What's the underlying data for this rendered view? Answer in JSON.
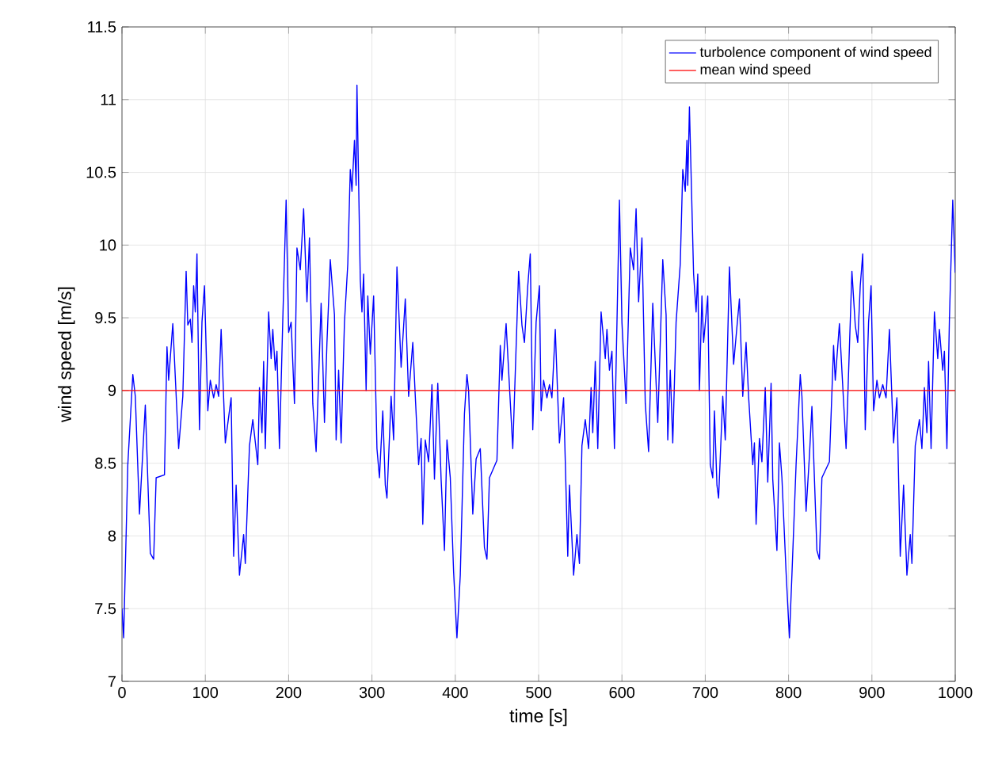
{
  "chart_data": {
    "type": "line",
    "xlabel": "time [s]",
    "ylabel": "wind speed [m/s]",
    "xlim": [
      0,
      1000
    ],
    "xticks": [
      0,
      100,
      200,
      300,
      400,
      500,
      600,
      700,
      800,
      900,
      1000
    ],
    "ylim": [
      7,
      11.5
    ],
    "yticks": [
      7,
      7.5,
      8,
      8.5,
      9,
      9.5,
      10,
      10.5,
      11,
      11.5
    ],
    "grid": true,
    "legend": "top right",
    "marker": "none",
    "line_style": "solid",
    "series": [
      {
        "name": "turbolence component of wind speed",
        "color": "#0000ff",
        "x": [
          0,
          2,
          7,
          13,
          16,
          21,
          28,
          34,
          38,
          41,
          51,
          54,
          56,
          61,
          68,
          73,
          77,
          79,
          82,
          84,
          86,
          88,
          90,
          93,
          96,
          99,
          103,
          106,
          110,
          113,
          116,
          119,
          124,
          131,
          134,
          137,
          141,
          146,
          148,
          153,
          157,
          163,
          165,
          168,
          170,
          172,
          176,
          179,
          181,
          184,
          186,
          189,
          193,
          197,
          200,
          203,
          207,
          210,
          214,
          218,
          222,
          225,
          229,
          233,
          239,
          243,
          246,
          250,
          255,
          257,
          260,
          263,
          267,
          271,
          274,
          276,
          279,
          281,
          282,
          286,
          288,
          290,
          293,
          295,
          298,
          302,
          306,
          309,
          313,
          316,
          318,
          323,
          326,
          330,
          335,
          340,
          344,
          349,
          352,
          356,
          359,
          361,
          364,
          368,
          372,
          375,
          379,
          383,
          387,
          390,
          394,
          398,
          402,
          406,
          411,
          414,
          416,
          421,
          425,
          430,
          435,
          438,
          441,
          450,
          454,
          456,
          461,
          469,
          476,
          480,
          483,
          487,
          490,
          493,
          497,
          501,
          503,
          506,
          510,
          513,
          516,
          520,
          525,
          530,
          535,
          537,
          542,
          546,
          549,
          552,
          556,
          560,
          563,
          565,
          568,
          571,
          575,
          580,
          582,
          585,
          588,
          591,
          597,
          600,
          605,
          610,
          614,
          617,
          620,
          624,
          628,
          632,
          637,
          643,
          646,
          649,
          653,
          655,
          658,
          661,
          665,
          670,
          673,
          676,
          678,
          679,
          681,
          686,
          689,
          691,
          693,
          696,
          698,
          703,
          706,
          709,
          711,
          714,
          716,
          721,
          724,
          729,
          734,
          741,
          745,
          749,
          752,
          757,
          759,
          761,
          765,
          768,
          772,
          775,
          779,
          781,
          786,
          789,
          792,
          797,
          801,
          804,
          809,
          814,
          816,
          821,
          825,
          828,
          834,
          837,
          840,
          849,
          854,
          856,
          861,
          869,
          876,
          880,
          883,
          886,
          889,
          892,
          896,
          899,
          902,
          906,
          909,
          913,
          917,
          921,
          926,
          930,
          934,
          938,
          942,
          946,
          948,
          952,
          957,
          960,
          963,
          966,
          968,
          971,
          975,
          979,
          981,
          985,
          987,
          990,
          993,
          997,
          1000
        ],
        "values": [
          7.5,
          7.3,
          8.49,
          9.11,
          8.96,
          8.15,
          8.9,
          7.88,
          7.84,
          8.4,
          8.42,
          9.3,
          9.07,
          9.46,
          8.6,
          8.96,
          9.82,
          9.45,
          9.49,
          9.33,
          9.72,
          9.54,
          9.94,
          8.73,
          9.47,
          9.72,
          8.86,
          9.07,
          8.95,
          9.04,
          8.96,
          9.42,
          8.64,
          8.95,
          7.86,
          8.35,
          7.73,
          8.01,
          7.81,
          8.62,
          8.8,
          8.49,
          9.02,
          8.71,
          9.2,
          8.6,
          9.54,
          9.22,
          9.42,
          9.14,
          9.27,
          8.6,
          9.49,
          10.31,
          9.4,
          9.47,
          8.91,
          9.98,
          9.83,
          10.25,
          9.61,
          10.05,
          8.91,
          8.58,
          9.6,
          8.78,
          9.33,
          9.9,
          9.52,
          8.66,
          9.14,
          8.64,
          9.47,
          9.87,
          10.52,
          10.37,
          10.72,
          10.41,
          11.1,
          9.76,
          9.54,
          9.8,
          9.0,
          9.65,
          9.25,
          9.65,
          8.6,
          8.4,
          8.86,
          8.35,
          8.26,
          8.96,
          8.66,
          9.85,
          9.16,
          9.63,
          8.96,
          9.33,
          8.96,
          8.49,
          8.67,
          8.08,
          8.66,
          8.51,
          9.04,
          8.39,
          9.05,
          8.39,
          7.9,
          8.66,
          8.4,
          7.75,
          7.3,
          7.73,
          8.84,
          9.11,
          9.0,
          8.15,
          8.53,
          8.6,
          7.92,
          7.84,
          8.4,
          8.52,
          9.31,
          9.07,
          9.46,
          8.6,
          9.82,
          9.45,
          9.33,
          9.72,
          9.94,
          8.73,
          9.47,
          9.72,
          8.86,
          9.07,
          8.95,
          9.04,
          8.95,
          9.42,
          8.64,
          8.95,
          7.86,
          8.35,
          7.73,
          8.01,
          7.81,
          8.62,
          8.8,
          8.6,
          9.02,
          8.71,
          9.2,
          8.6,
          9.54,
          9.22,
          9.42,
          9.14,
          9.27,
          8.6,
          10.31,
          9.47,
          8.91,
          9.98,
          9.83,
          10.25,
          9.61,
          10.05,
          8.91,
          8.58,
          9.6,
          8.78,
          9.33,
          9.9,
          9.52,
          8.66,
          9.14,
          8.64,
          9.47,
          9.87,
          10.52,
          10.37,
          10.72,
          10.41,
          10.95,
          9.8,
          9.54,
          9.8,
          9.0,
          9.65,
          9.33,
          9.65,
          8.49,
          8.4,
          8.86,
          8.35,
          8.26,
          8.96,
          8.66,
          9.85,
          9.18,
          9.63,
          8.96,
          9.33,
          8.96,
          8.49,
          8.64,
          8.08,
          8.67,
          8.51,
          9.02,
          8.37,
          9.05,
          8.39,
          7.9,
          8.64,
          8.4,
          7.75,
          7.3,
          7.73,
          8.49,
          9.11,
          8.96,
          8.17,
          8.55,
          8.89,
          7.9,
          7.84,
          8.4,
          8.51,
          9.31,
          9.07,
          9.46,
          8.6,
          9.82,
          9.45,
          9.33,
          9.72,
          9.94,
          8.73,
          9.47,
          9.72,
          8.86,
          9.07,
          8.95,
          9.04,
          8.95,
          9.42,
          8.64,
          8.95,
          7.86,
          8.35,
          7.73,
          8.01,
          7.81,
          8.62,
          8.8,
          8.6,
          9.02,
          8.71,
          9.2,
          8.6,
          9.54,
          9.22,
          9.42,
          9.14,
          9.27,
          8.6,
          9.49,
          10.31,
          9.81
        ]
      },
      {
        "name": "mean wind speed",
        "color": "#ff0000",
        "x": [
          0,
          1000
        ],
        "values": [
          9,
          9
        ]
      }
    ]
  }
}
